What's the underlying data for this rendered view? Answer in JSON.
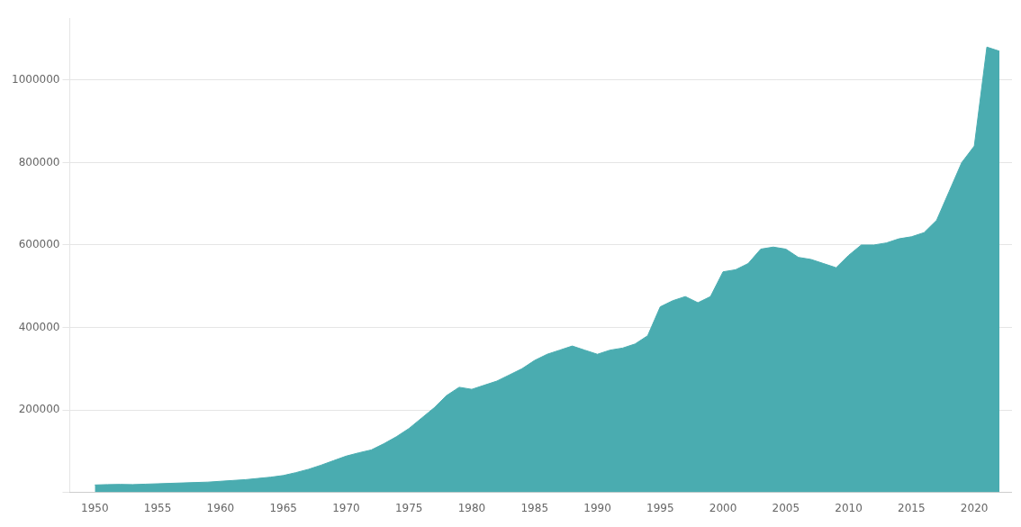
{
  "chart_data": {
    "type": "area",
    "x": [
      1950,
      1951,
      1952,
      1953,
      1954,
      1955,
      1956,
      1957,
      1958,
      1959,
      1960,
      1961,
      1962,
      1963,
      1964,
      1965,
      1966,
      1967,
      1968,
      1969,
      1970,
      1971,
      1972,
      1973,
      1974,
      1975,
      1976,
      1977,
      1978,
      1979,
      1980,
      1981,
      1982,
      1983,
      1984,
      1985,
      1986,
      1987,
      1988,
      1989,
      1990,
      1991,
      1992,
      1993,
      1994,
      1995,
      1996,
      1997,
      1998,
      1999,
      2000,
      2001,
      2002,
      2003,
      2004,
      2005,
      2006,
      2007,
      2008,
      2009,
      2010,
      2011,
      2012,
      2013,
      2014,
      2015,
      2016,
      2017,
      2018,
      2019,
      2020,
      2021,
      2022
    ],
    "values": [
      18000,
      19000,
      19500,
      19000,
      20000,
      21000,
      22000,
      23000,
      24000,
      25000,
      27000,
      29000,
      31000,
      34000,
      37000,
      41000,
      48000,
      56000,
      66000,
      77000,
      88000,
      96000,
      103000,
      118000,
      135000,
      155000,
      180000,
      205000,
      235000,
      255000,
      250000,
      260000,
      270000,
      285000,
      300000,
      320000,
      335000,
      345000,
      355000,
      345000,
      335000,
      345000,
      350000,
      360000,
      380000,
      450000,
      465000,
      475000,
      460000,
      475000,
      535000,
      540000,
      555000,
      590000,
      595000,
      590000,
      570000,
      565000,
      555000,
      545000,
      575000,
      600000,
      600000,
      605000,
      615000,
      620000,
      630000,
      660000,
      730000,
      800000,
      840000,
      1080000,
      1070000
    ],
    "color": "#4aacb0",
    "xlim": [
      1948,
      2023
    ],
    "xticks": [
      1950,
      1955,
      1960,
      1965,
      1970,
      1975,
      1980,
      1985,
      1990,
      1995,
      2000,
      2005,
      2010,
      2015,
      2020
    ],
    "ylim": [
      0,
      1150000
    ],
    "yticks": [
      {
        "value": 0,
        "label": ""
      },
      200000,
      400000,
      600000,
      800000,
      1000000
    ],
    "grid": "y"
  }
}
